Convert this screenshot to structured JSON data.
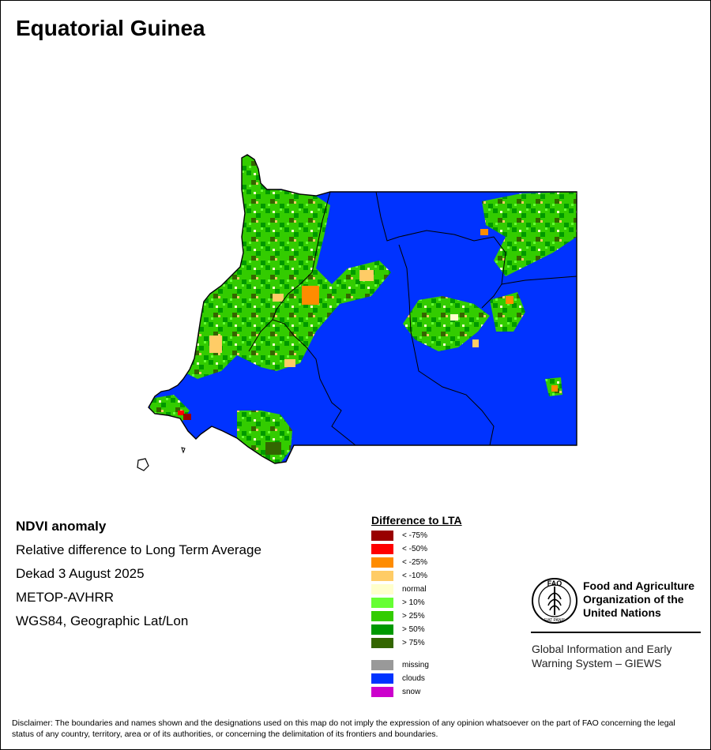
{
  "title": "Equatorial Guinea",
  "info": {
    "line1": "NDVI anomaly",
    "line2": "Relative difference to Long Term Average",
    "line3": "Dekad 3 August 2025",
    "line4": "METOP-AVHRR",
    "line5": "WGS84, Geographic Lat/Lon"
  },
  "legend": {
    "title": "Difference to LTA",
    "items": [
      {
        "label": "< -75%",
        "color": "#990000"
      },
      {
        "label": "< -50%",
        "color": "#ff0000"
      },
      {
        "label": "< -25%",
        "color": "#ff8c00"
      },
      {
        "label": "< -10%",
        "color": "#ffcc66"
      },
      {
        "label": "normal",
        "color": "#ffffcc"
      },
      {
        "label": "> 10%",
        "color": "#66ff33"
      },
      {
        "label": "> 25%",
        "color": "#33cc00"
      },
      {
        "label": "> 50%",
        "color": "#009900"
      },
      {
        "label": "> 75%",
        "color": "#336600"
      },
      {
        "label": "missing",
        "color": "#999999"
      },
      {
        "label": "clouds",
        "color": "#0033ff"
      },
      {
        "label": "snow",
        "color": "#cc00cc"
      }
    ]
  },
  "org": {
    "logo_text": "FAO",
    "logo_motto": "FIAT PANIS",
    "name_line1": "Food and Agriculture",
    "name_line2": "Organization of the",
    "name_line3": "United Nations",
    "giews_line1": "Global Information and Early",
    "giews_line2": "Warning System – GIEWS"
  },
  "disclaimer": "Disclaimer: The boundaries and names shown and the designations used on this map do not imply the expression of any opinion whatsoever on the part of FAO concerning the legal status of any country, territory, area or of its authorities, or concerning the delimitation of its frontiers and boundaries."
}
